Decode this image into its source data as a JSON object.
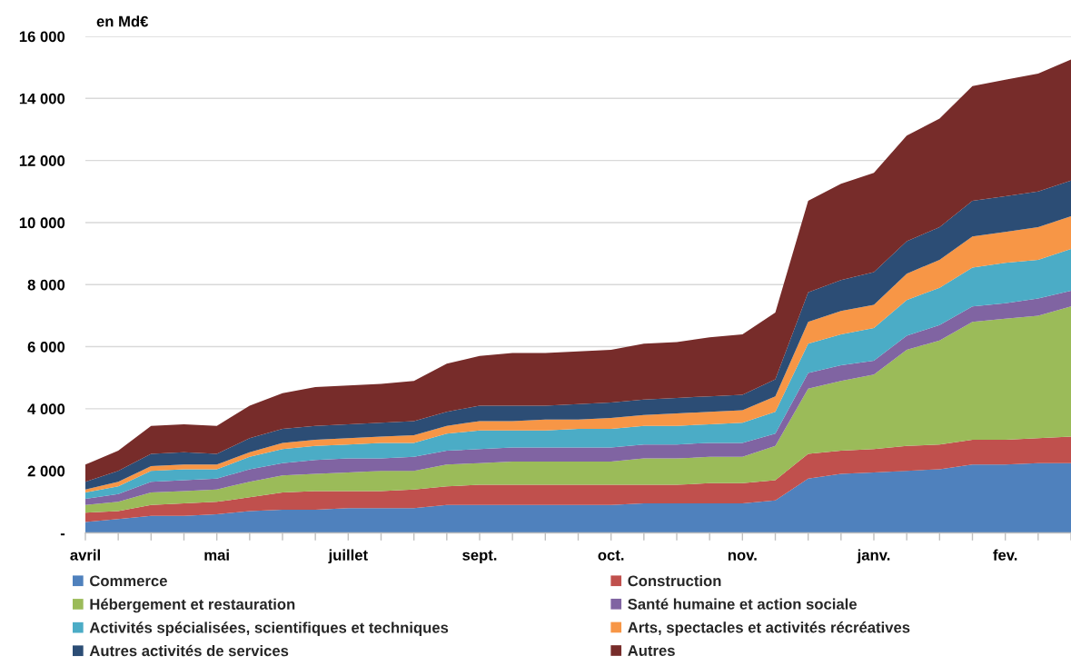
{
  "chart_data": {
    "type": "area",
    "stacked": true,
    "ylabel": "en Md€",
    "categories": [
      "avril",
      null,
      null,
      null,
      "mai",
      null,
      null,
      null,
      "juillet",
      null,
      null,
      null,
      "sept.",
      null,
      null,
      null,
      "oct.",
      null,
      null,
      null,
      "nov.",
      null,
      null,
      null,
      "janv.",
      null,
      null,
      null,
      "fev.",
      null,
      null
    ],
    "series": [
      {
        "name": "Commerce",
        "color": "#4f81bd",
        "values": [
          350,
          450,
          550,
          550,
          600,
          700,
          750,
          750,
          800,
          800,
          800,
          900,
          900,
          900,
          900,
          900,
          900,
          950,
          950,
          950,
          950,
          1050,
          1750,
          1900,
          1950,
          2000,
          2050,
          2200,
          2200,
          2250,
          2250
        ]
      },
      {
        "name": "Construction",
        "color": "#c0504d",
        "values": [
          300,
          250,
          350,
          400,
          400,
          450,
          550,
          600,
          550,
          550,
          600,
          600,
          650,
          650,
          650,
          650,
          650,
          600,
          600,
          650,
          650,
          650,
          800,
          750,
          750,
          800,
          800,
          800,
          800,
          800,
          850
        ]
      },
      {
        "name": "Hébergement et restauration",
        "color": "#9bbb59",
        "values": [
          250,
          300,
          400,
          400,
          400,
          500,
          550,
          550,
          600,
          650,
          600,
          700,
          700,
          750,
          750,
          750,
          750,
          850,
          850,
          850,
          850,
          1100,
          2100,
          2250,
          2400,
          3100,
          3350,
          3800,
          3900,
          3950,
          4200
        ]
      },
      {
        "name": "Santé humaine et action sociale",
        "color": "#8064a2",
        "values": [
          200,
          250,
          350,
          350,
          350,
          400,
          400,
          450,
          450,
          400,
          450,
          450,
          450,
          450,
          450,
          450,
          450,
          450,
          450,
          450,
          450,
          400,
          500,
          500,
          450,
          450,
          500,
          500,
          500,
          550,
          500
        ]
      },
      {
        "name": "Activités spécialisées, scientifiques et techniques",
        "color": "#4bacc6",
        "values": [
          200,
          250,
          350,
          350,
          300,
          400,
          450,
          450,
          450,
          500,
          450,
          550,
          600,
          550,
          550,
          600,
          600,
          600,
          600,
          600,
          650,
          700,
          950,
          1000,
          1050,
          1150,
          1200,
          1250,
          1300,
          1250,
          1350
        ]
      },
      {
        "name": "Arts, spectacles et activités récréatives",
        "color": "#f79646",
        "values": [
          100,
          150,
          150,
          150,
          150,
          150,
          200,
          200,
          200,
          200,
          250,
          250,
          300,
          300,
          350,
          300,
          350,
          350,
          400,
          400,
          400,
          500,
          700,
          750,
          750,
          850,
          900,
          1000,
          1000,
          1050,
          1050
        ]
      },
      {
        "name": "Autres activités de services",
        "color": "#2c4d75",
        "values": [
          250,
          350,
          400,
          400,
          350,
          450,
          450,
          450,
          450,
          450,
          450,
          450,
          500,
          500,
          450,
          500,
          500,
          500,
          500,
          500,
          500,
          550,
          950,
          1000,
          1050,
          1050,
          1050,
          1150,
          1150,
          1150,
          1150
        ]
      },
      {
        "name": "Autres",
        "color": "#772c2a",
        "values": [
          550,
          650,
          900,
          900,
          900,
          1050,
          1150,
          1250,
          1250,
          1250,
          1300,
          1550,
          1600,
          1700,
          1700,
          1700,
          1700,
          1800,
          1800,
          1900,
          1950,
          2150,
          2950,
          3100,
          3200,
          3400,
          3500,
          3700,
          3750,
          3800,
          3900
        ]
      }
    ],
    "ylim": [
      0,
      16000
    ],
    "yticks": [
      {
        "value": 0,
        "label": "-"
      },
      {
        "value": 2000,
        "label": "2 000"
      },
      {
        "value": 4000,
        "label": "4 000"
      },
      {
        "value": 6000,
        "label": "6 000"
      },
      {
        "value": 8000,
        "label": "8 000"
      },
      {
        "value": 10000,
        "label": "10 000"
      },
      {
        "value": 12000,
        "label": "12 000"
      },
      {
        "value": 14000,
        "label": "14 000"
      },
      {
        "value": 16000,
        "label": "16 000"
      }
    ],
    "grid": "y",
    "legend": "bottom"
  }
}
